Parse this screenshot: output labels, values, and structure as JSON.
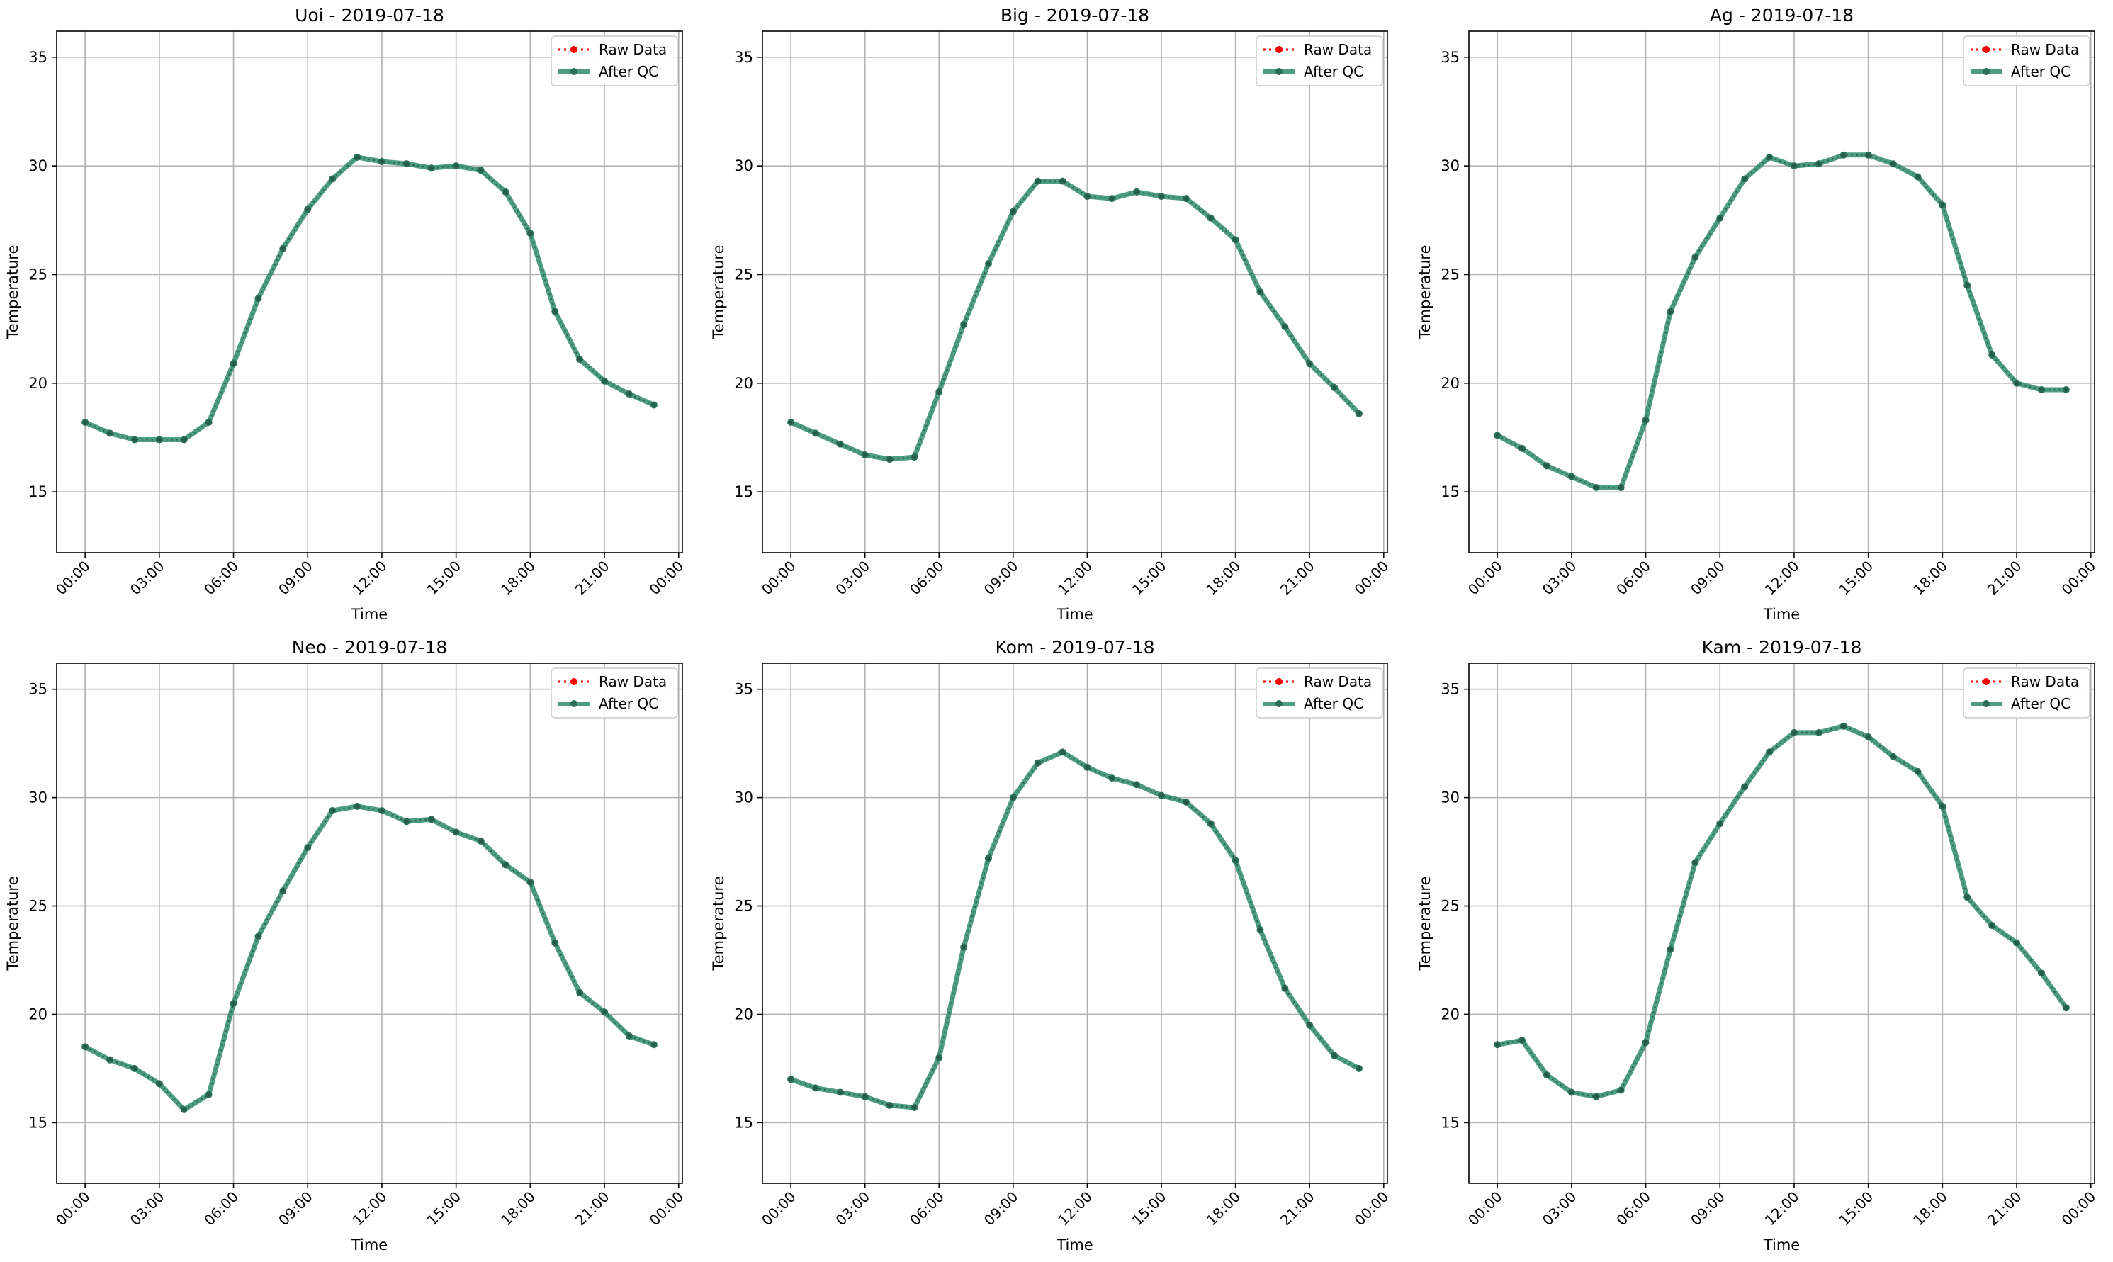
{
  "chart_data": [
    {
      "type": "line",
      "title": "Uoi - 2019-07-18",
      "xlabel": "Time",
      "ylabel": "Temperature",
      "x": [
        "00:00",
        "01:00",
        "02:00",
        "03:00",
        "04:00",
        "05:00",
        "06:00",
        "07:00",
        "08:00",
        "09:00",
        "10:00",
        "11:00",
        "12:00",
        "13:00",
        "14:00",
        "15:00",
        "16:00",
        "17:00",
        "18:00",
        "19:00",
        "20:00",
        "21:00",
        "22:00",
        "23:00"
      ],
      "xticks": [
        "00:00",
        "03:00",
        "06:00",
        "09:00",
        "12:00",
        "15:00",
        "18:00",
        "21:00",
        "00:00"
      ],
      "xlim_hours": [
        -1.15,
        24.15
      ],
      "ylim": [
        12.2,
        36.2
      ],
      "yticks": [
        15,
        20,
        25,
        30,
        35
      ],
      "grid": true,
      "legend": "top-right",
      "series": [
        {
          "name": "Raw Data",
          "color": "#ff0000",
          "style": "dotted",
          "values": [
            18.2,
            17.7,
            17.4,
            17.4,
            17.4,
            18.2,
            20.9,
            23.9,
            26.2,
            28.0,
            29.4,
            30.4,
            30.2,
            30.1,
            29.9,
            30.0,
            29.8,
            28.8,
            26.9,
            23.3,
            21.1,
            20.1,
            19.5,
            19.0
          ]
        },
        {
          "name": "After QC",
          "color": "#2e8b6e",
          "style": "solid",
          "values": [
            18.2,
            17.7,
            17.4,
            17.4,
            17.4,
            18.2,
            20.9,
            23.9,
            26.2,
            28.0,
            29.4,
            30.4,
            30.2,
            30.1,
            29.9,
            30.0,
            29.8,
            28.8,
            26.9,
            23.3,
            21.1,
            20.1,
            19.5,
            19.0
          ]
        }
      ]
    },
    {
      "type": "line",
      "title": "Big - 2019-07-18",
      "xlabel": "Time",
      "ylabel": "Temperature",
      "x": [
        "00:00",
        "01:00",
        "02:00",
        "03:00",
        "04:00",
        "05:00",
        "06:00",
        "07:00",
        "08:00",
        "09:00",
        "10:00",
        "11:00",
        "12:00",
        "13:00",
        "14:00",
        "15:00",
        "16:00",
        "17:00",
        "18:00",
        "19:00",
        "20:00",
        "21:00",
        "22:00",
        "23:00"
      ],
      "xticks": [
        "00:00",
        "03:00",
        "06:00",
        "09:00",
        "12:00",
        "15:00",
        "18:00",
        "21:00",
        "00:00"
      ],
      "xlim_hours": [
        -1.15,
        24.15
      ],
      "ylim": [
        12.2,
        36.2
      ],
      "yticks": [
        15,
        20,
        25,
        30,
        35
      ],
      "grid": true,
      "legend": "top-right",
      "series": [
        {
          "name": "Raw Data",
          "color": "#ff0000",
          "style": "dotted",
          "values": [
            18.2,
            17.7,
            17.2,
            16.7,
            16.5,
            16.6,
            19.6,
            22.7,
            25.5,
            27.9,
            29.3,
            29.3,
            28.6,
            28.5,
            28.8,
            28.6,
            28.5,
            27.6,
            26.6,
            24.2,
            22.6,
            20.9,
            19.8,
            18.6
          ]
        },
        {
          "name": "After QC",
          "color": "#2e8b6e",
          "style": "solid",
          "values": [
            18.2,
            17.7,
            17.2,
            16.7,
            16.5,
            16.6,
            19.6,
            22.7,
            25.5,
            27.9,
            29.3,
            29.3,
            28.6,
            28.5,
            28.8,
            28.6,
            28.5,
            27.6,
            26.6,
            24.2,
            22.6,
            20.9,
            19.8,
            18.6
          ]
        }
      ]
    },
    {
      "type": "line",
      "title": "Ag - 2019-07-18",
      "xlabel": "Time",
      "ylabel": "Temperature",
      "x": [
        "00:00",
        "01:00",
        "02:00",
        "03:00",
        "04:00",
        "05:00",
        "06:00",
        "07:00",
        "08:00",
        "09:00",
        "10:00",
        "11:00",
        "12:00",
        "13:00",
        "14:00",
        "15:00",
        "16:00",
        "17:00",
        "18:00",
        "19:00",
        "20:00",
        "21:00",
        "22:00",
        "23:00"
      ],
      "xticks": [
        "00:00",
        "03:00",
        "06:00",
        "09:00",
        "12:00",
        "15:00",
        "18:00",
        "21:00",
        "00:00"
      ],
      "xlim_hours": [
        -1.15,
        24.15
      ],
      "ylim": [
        12.2,
        36.2
      ],
      "yticks": [
        15,
        20,
        25,
        30,
        35
      ],
      "grid": true,
      "legend": "top-right",
      "series": [
        {
          "name": "Raw Data",
          "color": "#ff0000",
          "style": "dotted",
          "values": [
            17.6,
            17.0,
            16.2,
            15.7,
            15.2,
            15.2,
            18.3,
            23.3,
            25.8,
            27.6,
            29.4,
            30.4,
            30.0,
            30.1,
            30.5,
            30.5,
            30.1,
            29.5,
            28.2,
            24.5,
            21.3,
            20.0,
            19.7,
            19.7
          ]
        },
        {
          "name": "After QC",
          "color": "#2e8b6e",
          "style": "solid",
          "values": [
            17.6,
            17.0,
            16.2,
            15.7,
            15.2,
            15.2,
            18.3,
            23.3,
            25.8,
            27.6,
            29.4,
            30.4,
            30.0,
            30.1,
            30.5,
            30.5,
            30.1,
            29.5,
            28.2,
            24.5,
            21.3,
            20.0,
            19.7,
            19.7
          ]
        }
      ]
    },
    {
      "type": "line",
      "title": "Neo - 2019-07-18",
      "xlabel": "Time",
      "ylabel": "Temperature",
      "x": [
        "00:00",
        "01:00",
        "02:00",
        "03:00",
        "04:00",
        "05:00",
        "06:00",
        "07:00",
        "08:00",
        "09:00",
        "10:00",
        "11:00",
        "12:00",
        "13:00",
        "14:00",
        "15:00",
        "16:00",
        "17:00",
        "18:00",
        "19:00",
        "20:00",
        "21:00",
        "22:00",
        "23:00"
      ],
      "xticks": [
        "00:00",
        "03:00",
        "06:00",
        "09:00",
        "12:00",
        "15:00",
        "18:00",
        "21:00",
        "00:00"
      ],
      "xlim_hours": [
        -1.15,
        24.15
      ],
      "ylim": [
        12.2,
        36.2
      ],
      "yticks": [
        15,
        20,
        25,
        30,
        35
      ],
      "grid": true,
      "legend": "top-right",
      "series": [
        {
          "name": "Raw Data",
          "color": "#ff0000",
          "style": "dotted",
          "values": [
            18.5,
            17.9,
            17.5,
            16.8,
            15.6,
            16.3,
            20.5,
            23.6,
            25.7,
            27.7,
            29.4,
            29.6,
            29.4,
            28.9,
            29.0,
            28.4,
            28.0,
            26.9,
            26.1,
            23.3,
            21.0,
            20.1,
            19.0,
            18.6
          ]
        },
        {
          "name": "After QC",
          "color": "#2e8b6e",
          "style": "solid",
          "values": [
            18.5,
            17.9,
            17.5,
            16.8,
            15.6,
            16.3,
            20.5,
            23.6,
            25.7,
            27.7,
            29.4,
            29.6,
            29.4,
            28.9,
            29.0,
            28.4,
            28.0,
            26.9,
            26.1,
            23.3,
            21.0,
            20.1,
            19.0,
            18.6
          ]
        }
      ]
    },
    {
      "type": "line",
      "title": "Kom - 2019-07-18",
      "xlabel": "Time",
      "ylabel": "Temperature",
      "x": [
        "00:00",
        "01:00",
        "02:00",
        "03:00",
        "04:00",
        "05:00",
        "06:00",
        "07:00",
        "08:00",
        "09:00",
        "10:00",
        "11:00",
        "12:00",
        "13:00",
        "14:00",
        "15:00",
        "16:00",
        "17:00",
        "18:00",
        "19:00",
        "20:00",
        "21:00",
        "22:00",
        "23:00"
      ],
      "xticks": [
        "00:00",
        "03:00",
        "06:00",
        "09:00",
        "12:00",
        "15:00",
        "18:00",
        "21:00",
        "00:00"
      ],
      "xlim_hours": [
        -1.15,
        24.15
      ],
      "ylim": [
        12.2,
        36.2
      ],
      "yticks": [
        15,
        20,
        25,
        30,
        35
      ],
      "grid": true,
      "legend": "top-right",
      "series": [
        {
          "name": "Raw Data",
          "color": "#ff0000",
          "style": "dotted",
          "values": [
            17.0,
            16.6,
            16.4,
            16.2,
            15.8,
            15.7,
            18.0,
            23.1,
            27.2,
            30.0,
            31.6,
            32.1,
            31.4,
            30.9,
            30.6,
            30.1,
            29.8,
            28.8,
            27.1,
            23.9,
            21.2,
            19.5,
            18.1,
            17.5
          ]
        },
        {
          "name": "After QC",
          "color": "#2e8b6e",
          "style": "solid",
          "values": [
            17.0,
            16.6,
            16.4,
            16.2,
            15.8,
            15.7,
            18.0,
            23.1,
            27.2,
            30.0,
            31.6,
            32.1,
            31.4,
            30.9,
            30.6,
            30.1,
            29.8,
            28.8,
            27.1,
            23.9,
            21.2,
            19.5,
            18.1,
            17.5
          ]
        }
      ]
    },
    {
      "type": "line",
      "title": "Kam - 2019-07-18",
      "xlabel": "Time",
      "ylabel": "Temperature",
      "x": [
        "00:00",
        "01:00",
        "02:00",
        "03:00",
        "04:00",
        "05:00",
        "06:00",
        "07:00",
        "08:00",
        "09:00",
        "10:00",
        "11:00",
        "12:00",
        "13:00",
        "14:00",
        "15:00",
        "16:00",
        "17:00",
        "18:00",
        "19:00",
        "20:00",
        "21:00",
        "22:00",
        "23:00"
      ],
      "xticks": [
        "00:00",
        "03:00",
        "06:00",
        "09:00",
        "12:00",
        "15:00",
        "18:00",
        "21:00",
        "00:00"
      ],
      "xlim_hours": [
        -1.15,
        24.15
      ],
      "ylim": [
        12.2,
        36.2
      ],
      "yticks": [
        15,
        20,
        25,
        30,
        35
      ],
      "grid": true,
      "legend": "top-right",
      "series": [
        {
          "name": "Raw Data",
          "color": "#ff0000",
          "style": "dotted",
          "values": [
            18.6,
            18.8,
            17.2,
            16.4,
            16.2,
            16.5,
            18.7,
            23.0,
            27.0,
            28.8,
            30.5,
            32.1,
            33.0,
            33.0,
            33.3,
            32.8,
            31.9,
            31.2,
            29.6,
            25.4,
            24.1,
            23.3,
            21.9,
            20.3
          ]
        },
        {
          "name": "After QC",
          "color": "#2e8b6e",
          "style": "solid",
          "values": [
            18.6,
            18.8,
            17.2,
            16.4,
            16.2,
            16.5,
            18.7,
            23.0,
            27.0,
            28.8,
            30.5,
            32.1,
            33.0,
            33.0,
            33.3,
            32.8,
            31.9,
            31.2,
            29.6,
            25.4,
            24.1,
            23.3,
            21.9,
            20.3
          ]
        }
      ]
    }
  ]
}
